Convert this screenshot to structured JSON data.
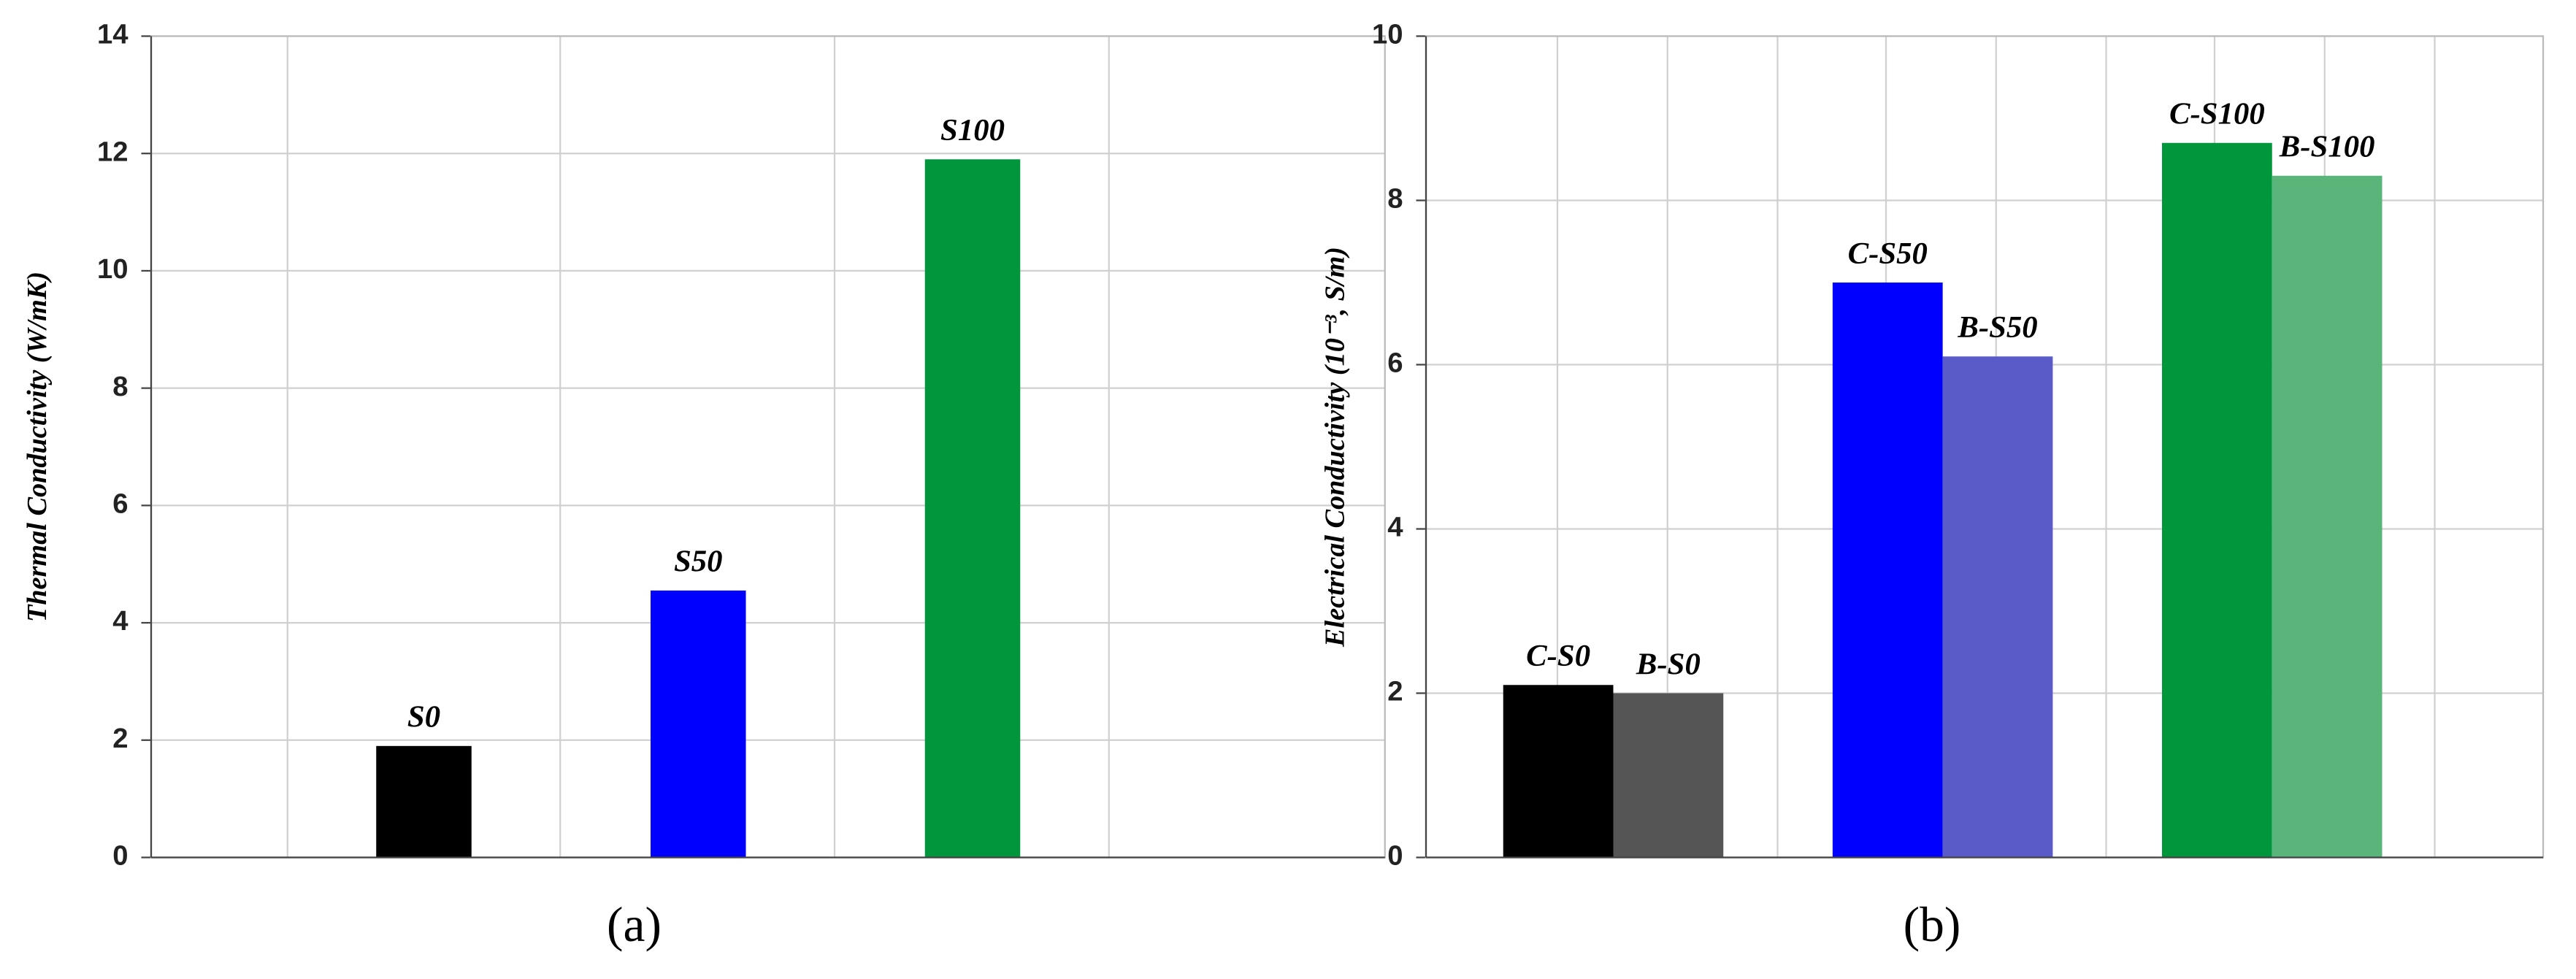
{
  "chart_data": [
    {
      "type": "bar",
      "caption": "(a)",
      "y_label": "Thermal Conductivity (W/mK)",
      "categories": [
        "S0",
        "S50",
        "S100"
      ],
      "values": [
        1.9,
        4.55,
        11.9
      ],
      "colors": [
        "#000000",
        "#0000ff",
        "#00963c"
      ],
      "ylim": [
        0,
        14
      ],
      "yticks": [
        0,
        2,
        4,
        6,
        8,
        10,
        12,
        14
      ],
      "grid": true
    },
    {
      "type": "bar",
      "caption": "(b)",
      "y_label": "Electrical Conductivity (10⁻³, S/m)",
      "categories": [
        "C-S0",
        "B-S0",
        "C-S50",
        "B-S50",
        "C-S100",
        "B-S100"
      ],
      "values": [
        2.1,
        2.0,
        7.0,
        6.1,
        8.7,
        8.3
      ],
      "colors": [
        "#000000",
        "#555555",
        "#0000ff",
        "#5a5ac8",
        "#00963c",
        "#5ab57a"
      ],
      "ylim": [
        0,
        10
      ],
      "yticks": [
        0,
        2,
        4,
        6,
        8,
        10
      ],
      "grid": true
    }
  ]
}
